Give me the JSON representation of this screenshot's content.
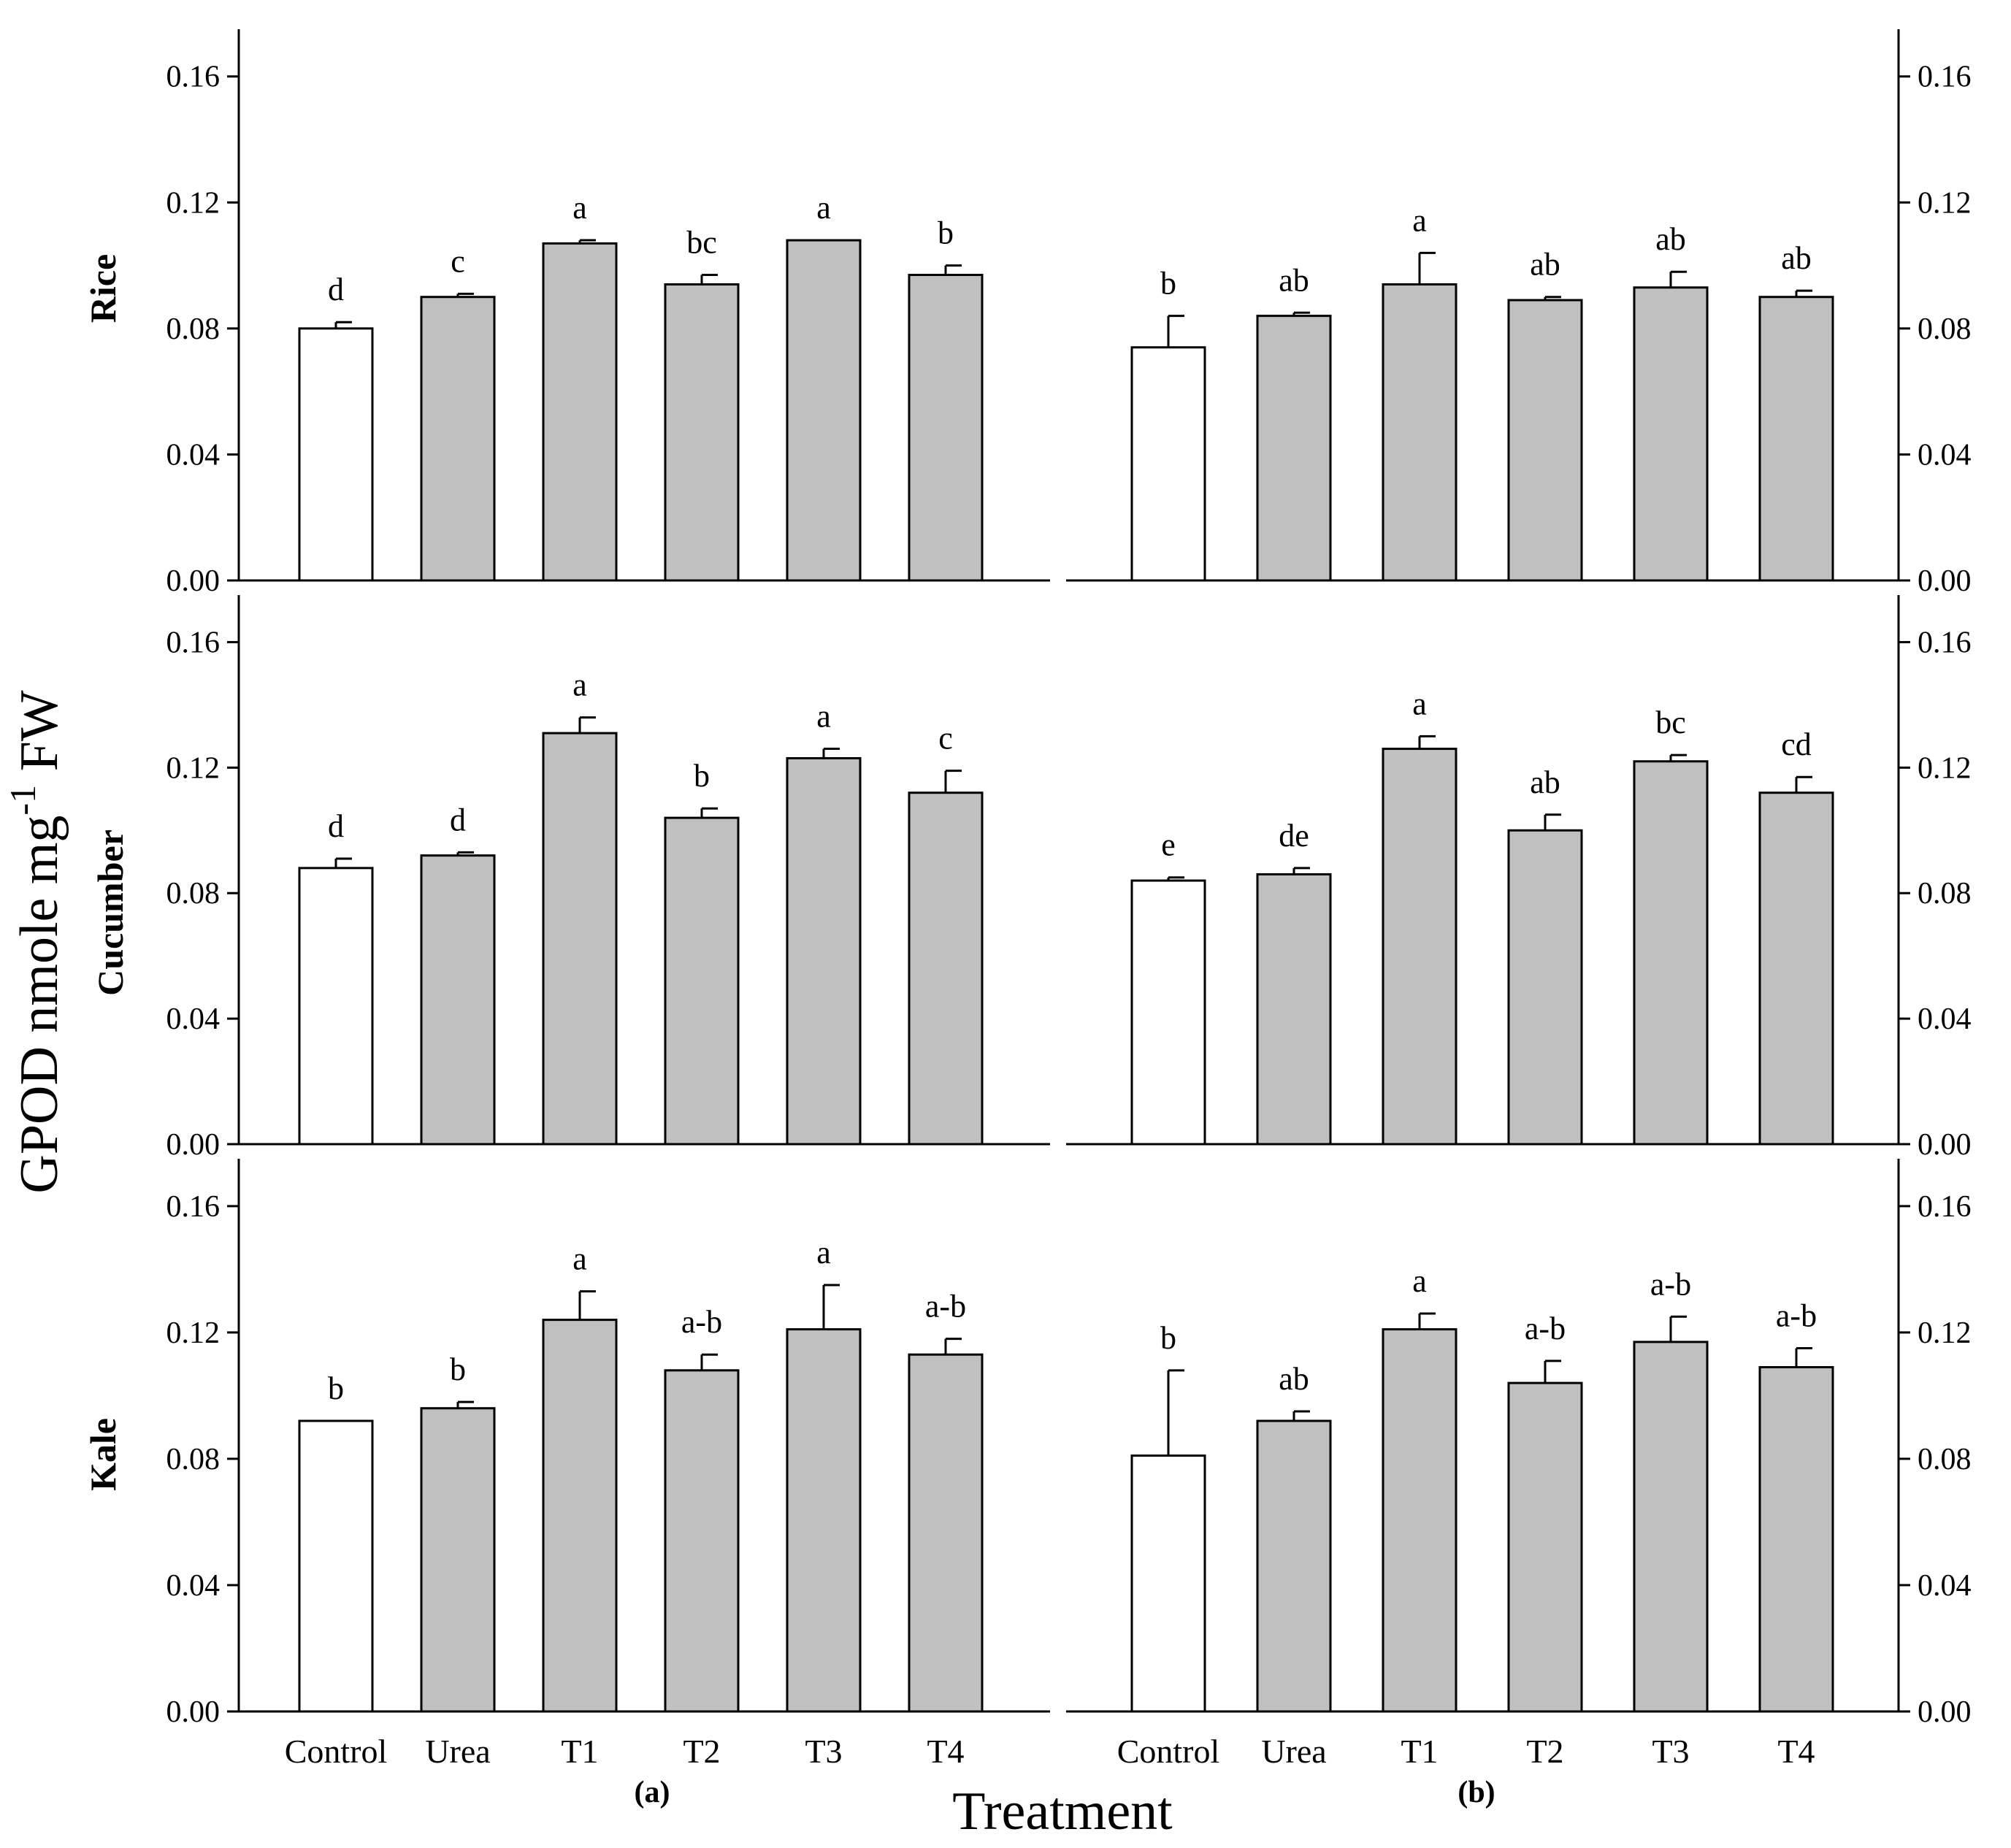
{
  "ylabel": {
    "main": "GPOD nmole mg",
    "sup": "-1",
    "tail": " FW"
  },
  "xlabel": "Treatment",
  "panel_labels": [
    "(a)",
    "(b)"
  ],
  "row_labels": [
    "Rice",
    "Cucumber",
    "Kale"
  ],
  "colors": {
    "control_fill": "#ffffff",
    "treatment_fill": "#c0c0c0",
    "stroke": "#000000"
  },
  "chart_data": [
    {
      "type": "bar",
      "row": "Rice",
      "panel": "(a)",
      "categories": [
        "Control",
        "Urea",
        "T1",
        "T2",
        "T3",
        "T4"
      ],
      "values": [
        0.08,
        0.09,
        0.107,
        0.094,
        0.108,
        0.097
      ],
      "errors": [
        0.002,
        0.001,
        0.001,
        0.003,
        0.0,
        0.003
      ],
      "letters": [
        "d",
        "c",
        "a",
        "bc",
        "a",
        "b"
      ],
      "ylim": [
        0,
        0.175
      ],
      "yticks": [
        "0.00",
        "0.04",
        "0.08",
        "0.12",
        "0.16"
      ]
    },
    {
      "type": "bar",
      "row": "Rice",
      "panel": "(b)",
      "categories": [
        "Control",
        "Urea",
        "T1",
        "T2",
        "T3",
        "T4"
      ],
      "values": [
        0.074,
        0.084,
        0.094,
        0.089,
        0.093,
        0.09
      ],
      "errors": [
        0.01,
        0.001,
        0.01,
        0.001,
        0.005,
        0.002
      ],
      "letters": [
        "b",
        "ab",
        "a",
        "ab",
        "ab",
        "ab"
      ],
      "ylim": [
        0,
        0.175
      ],
      "yticks": [
        "0.00",
        "0.04",
        "0.08",
        "0.12",
        "0.16"
      ]
    },
    {
      "type": "bar",
      "row": "Cucumber",
      "panel": "(a)",
      "categories": [
        "Control",
        "Urea",
        "T1",
        "T2",
        "T3",
        "T4"
      ],
      "values": [
        0.088,
        0.092,
        0.131,
        0.104,
        0.123,
        0.112
      ],
      "errors": [
        0.003,
        0.001,
        0.005,
        0.003,
        0.003,
        0.007
      ],
      "letters": [
        "d",
        "d",
        "a",
        "b",
        "a",
        "c"
      ],
      "ylim": [
        0,
        0.175
      ],
      "yticks": [
        "0.00",
        "0.04",
        "0.08",
        "0.12",
        "0.16"
      ]
    },
    {
      "type": "bar",
      "row": "Cucumber",
      "panel": "(b)",
      "categories": [
        "Control",
        "Urea",
        "T1",
        "T2",
        "T3",
        "T4"
      ],
      "values": [
        0.084,
        0.086,
        0.126,
        0.1,
        0.122,
        0.112
      ],
      "errors": [
        0.001,
        0.002,
        0.004,
        0.005,
        0.002,
        0.005
      ],
      "letters": [
        "e",
        "de",
        "a",
        "ab",
        "bc",
        "cd"
      ],
      "ylim": [
        0,
        0.175
      ],
      "yticks": [
        "0.00",
        "0.04",
        "0.08",
        "0.12",
        "0.16"
      ]
    },
    {
      "type": "bar",
      "row": "Kale",
      "panel": "(a)",
      "categories": [
        "Control",
        "Urea",
        "T1",
        "T2",
        "T3",
        "T4"
      ],
      "values": [
        0.092,
        0.096,
        0.124,
        0.108,
        0.121,
        0.113
      ],
      "errors": [
        0.0,
        0.002,
        0.009,
        0.005,
        0.014,
        0.005
      ],
      "letters": [
        "b",
        "b",
        "a",
        "a-b",
        "a",
        "a-b"
      ],
      "ylim": [
        0,
        0.175
      ],
      "yticks": [
        "0.00",
        "0.04",
        "0.08",
        "0.12",
        "0.16"
      ]
    },
    {
      "type": "bar",
      "row": "Kale",
      "panel": "(b)",
      "categories": [
        "Control",
        "Urea",
        "T1",
        "T2",
        "T3",
        "T4"
      ],
      "values": [
        0.081,
        0.092,
        0.121,
        0.104,
        0.117,
        0.109
      ],
      "errors": [
        0.027,
        0.003,
        0.005,
        0.007,
        0.008,
        0.006
      ],
      "letters": [
        "b",
        "ab",
        "a",
        "a-b",
        "a-b",
        "a-b"
      ],
      "ylim": [
        0,
        0.175
      ],
      "yticks": [
        "0.00",
        "0.04",
        "0.08",
        "0.12",
        "0.16"
      ]
    }
  ]
}
